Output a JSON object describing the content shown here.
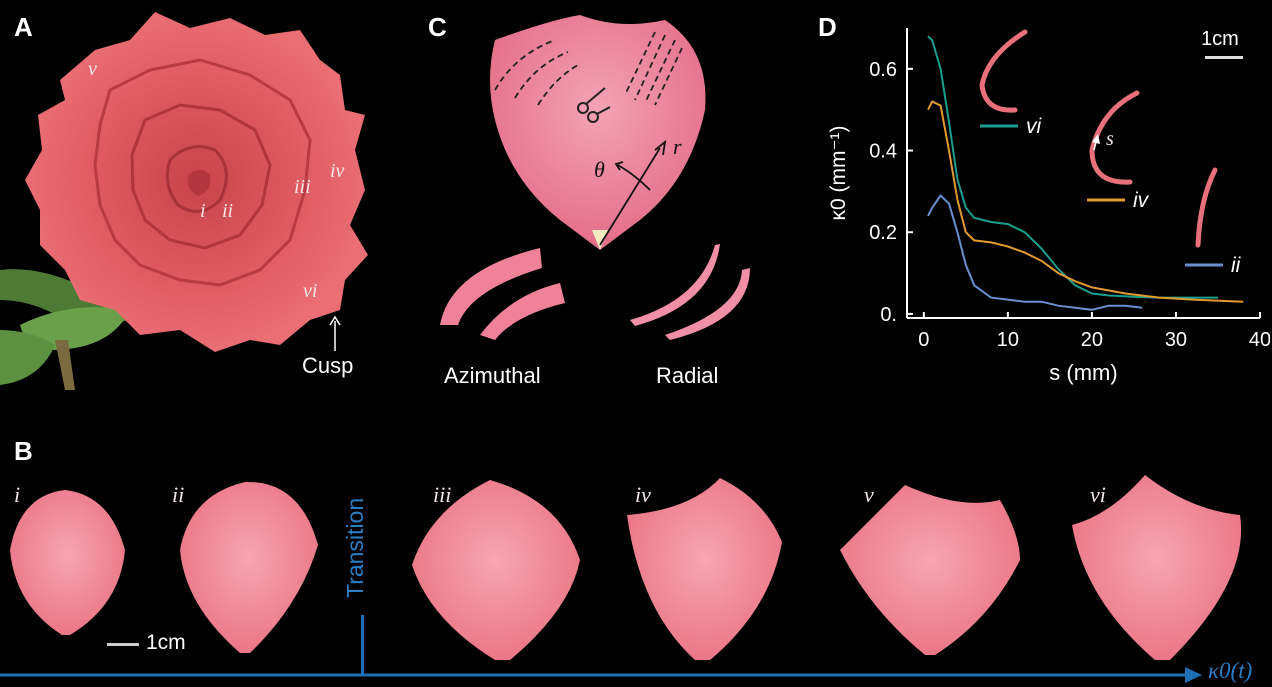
{
  "panels": {
    "A": {
      "letter": "A",
      "labels": [
        "i",
        "ii",
        "iii",
        "iv",
        "v",
        "vi"
      ],
      "cusp_label": "Cusp"
    },
    "B": {
      "letter": "B",
      "petal_labels": [
        "i",
        "ii",
        "iii",
        "iv",
        "v",
        "vi"
      ],
      "scale_label": "1cm",
      "transition_label": "Transition",
      "axis_label": "κ0(t)"
    },
    "C": {
      "letter": "C",
      "theta_label": "θ",
      "r_label": "r",
      "azimuthal_label": "Azimuthal",
      "radial_label": "Radial"
    },
    "D": {
      "letter": "D",
      "scale_label": "1cm",
      "s_label": "s"
    }
  },
  "colors": {
    "background": "#000000",
    "petal": "#e8707a",
    "rose": "#dd5960",
    "axis_blue": "#1f77b4",
    "teal": "#1a9e8f",
    "orange": "#e09a30",
    "blue_curve": "#6a8fd0"
  },
  "chart_data": {
    "type": "line",
    "xlabel": "s (mm)",
    "ylabel": "κ0 (mm⁻¹)",
    "xlim": [
      -2,
      40
    ],
    "ylim": [
      -0.01,
      0.7
    ],
    "xticks": [
      "0",
      "10",
      "20",
      "30",
      "40"
    ],
    "yticks": [
      "0.",
      "0.2",
      "0.4",
      "0.6"
    ],
    "series": [
      {
        "name": "vi",
        "color": "#1a9e8f",
        "x": [
          0.5,
          1,
          2,
          3,
          4,
          5,
          6,
          8,
          10,
          12,
          14,
          16,
          18,
          20,
          22,
          25,
          28,
          32,
          35
        ],
        "y": [
          0.68,
          0.67,
          0.6,
          0.47,
          0.33,
          0.26,
          0.235,
          0.225,
          0.22,
          0.2,
          0.16,
          0.11,
          0.07,
          0.05,
          0.045,
          0.042,
          0.04,
          0.04,
          0.04
        ]
      },
      {
        "name": "iv",
        "color": "#e09a30",
        "x": [
          0.5,
          1,
          2,
          3,
          4,
          5,
          6,
          8,
          10,
          12,
          14,
          16,
          18,
          20,
          24,
          28,
          32,
          38
        ],
        "y": [
          0.5,
          0.52,
          0.51,
          0.4,
          0.28,
          0.2,
          0.18,
          0.175,
          0.165,
          0.15,
          0.13,
          0.1,
          0.08,
          0.065,
          0.05,
          0.04,
          0.035,
          0.03
        ]
      },
      {
        "name": "ii",
        "color": "#6a8fd0",
        "x": [
          0.5,
          1,
          2,
          3,
          4,
          5,
          6,
          8,
          10,
          12,
          14,
          16,
          18,
          20,
          22,
          24,
          26
        ],
        "y": [
          0.24,
          0.26,
          0.29,
          0.27,
          0.2,
          0.12,
          0.07,
          0.04,
          0.035,
          0.03,
          0.03,
          0.02,
          0.015,
          0.01,
          0.02,
          0.02,
          0.015
        ]
      }
    ]
  }
}
